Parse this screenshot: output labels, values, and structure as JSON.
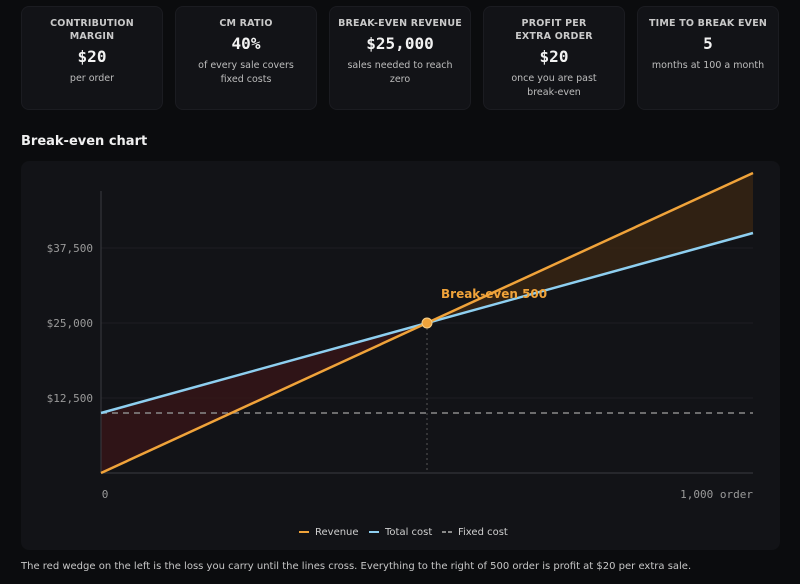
{
  "cards": [
    {
      "label": "CONTRIBUTION MARGIN",
      "value": "$20",
      "sub": "per order"
    },
    {
      "label": "CM RATIO",
      "value": "40%",
      "sub": "of every sale covers fixed costs"
    },
    {
      "label": "BREAK-EVEN REVENUE",
      "value": "$25,000",
      "sub": "sales needed to reach zero"
    },
    {
      "label": "PROFIT PER EXTRA ORDER",
      "value": "$20",
      "sub": "once you are past break-even"
    },
    {
      "label": "TIME TO BREAK EVEN",
      "value": "5",
      "sub": "months at 100 a month"
    }
  ],
  "section_title": "Break-even chart",
  "footnote": "The red wedge on the left is the loss you carry until the lines cross. Everything to the right of 500 order is profit at $20 per extra sale.",
  "colors": {
    "revenue": "#f0a33a",
    "total_cost": "#8ecff0",
    "fixed_cost": "#8a8a8a",
    "loss_fill": "#3a1518",
    "profit_fill": "#3b2713"
  },
  "chart_data": {
    "type": "line",
    "x": [
      0,
      1000
    ],
    "xlim": [
      0,
      1000
    ],
    "ylim": [
      0,
      50000
    ],
    "x_ticks": [
      {
        "value": 0,
        "label": "0"
      },
      {
        "value": 1000,
        "label": "1,000 order"
      }
    ],
    "y_ticks": [
      {
        "value": 12500,
        "label": "$12,500"
      },
      {
        "value": 25000,
        "label": "$25,000"
      },
      {
        "value": 37500,
        "label": "$37,500"
      }
    ],
    "series": [
      {
        "name": "Revenue",
        "values": [
          0,
          50000
        ],
        "style": "solid"
      },
      {
        "name": "Total cost",
        "values": [
          10000,
          40000
        ],
        "style": "solid"
      },
      {
        "name": "Fixed cost",
        "values": [
          10000,
          10000
        ],
        "style": "dashed"
      }
    ],
    "break_even": {
      "x": 500,
      "y": 25000,
      "label": "Break-even 500"
    },
    "legend_position": "bottom-center",
    "grid": "horizontal"
  }
}
